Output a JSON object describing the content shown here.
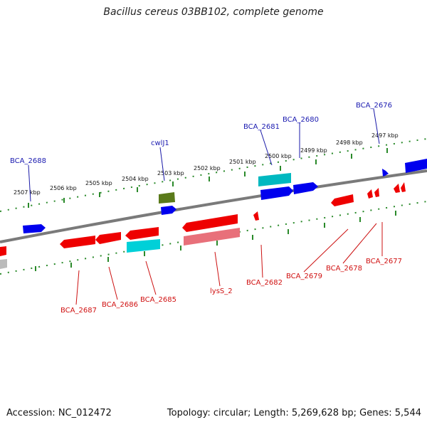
{
  "title": "Bacillus cereus 03BB102, complete genome",
  "accession": "Accession: NC_012472",
  "summary": "Topology: circular; Length: 5,269,628 bp; Genes: 5,544",
  "colors": {
    "forward_gene": "#0000ee",
    "reverse_gene": "#ee0000",
    "rna": "#00c8c8",
    "pseudo_reverse": "#e8707a",
    "olive": "#5a7a1a",
    "backbone": "#808080",
    "ticks": "#2a8a2a"
  },
  "kbp_ticks": [
    "2507 kbp",
    "2506 kbp",
    "2505 kbp",
    "2504 kbp",
    "2503 kbp",
    "2502 kbp",
    "2501 kbp",
    "2500 kbp",
    "2499 kbp",
    "2498 kbp",
    "2497 kbp"
  ],
  "forward_labels": [
    "BCA_2688",
    "cwlJ1",
    "BCA_2681",
    "BCA_2680",
    "BCA_2676"
  ],
  "reverse_labels": [
    "BCA_2687",
    "BCA_2686",
    "BCA_2685",
    "lysS_2",
    "BCA_2682",
    "BCA_2679",
    "BCA_2678",
    "BCA_2677"
  ]
}
